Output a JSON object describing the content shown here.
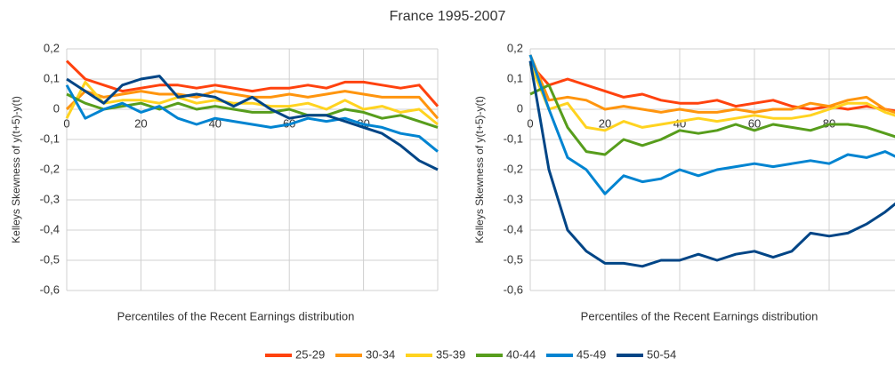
{
  "title": "France 1995-2007",
  "chart_data": [
    {
      "type": "line",
      "ylabel": "Kelleys Skewness of y(t+5)-y(t)",
      "xlabel": "Percentiles of the Recent Earnings distribution",
      "x": [
        0,
        5,
        10,
        15,
        20,
        25,
        30,
        35,
        40,
        45,
        50,
        55,
        60,
        65,
        70,
        75,
        80,
        85,
        90,
        95,
        100
      ],
      "xlim": [
        0,
        100
      ],
      "xticks": [
        0,
        20,
        40,
        60,
        80
      ],
      "ylim": [
        -0.6,
        0.2
      ],
      "yticks": [
        {
          "value": 0.2,
          "label": "0,2"
        },
        {
          "value": 0.1,
          "label": "0,1"
        },
        0,
        {
          "value": -0.1,
          "label": "-0,1"
        },
        {
          "value": -0.2,
          "label": "-0,2"
        },
        {
          "value": -0.3,
          "label": "-0,3"
        },
        {
          "value": -0.4,
          "label": "-0,4"
        },
        {
          "value": -0.5,
          "label": "-0,5"
        },
        {
          "value": -0.6,
          "label": "-0,6"
        }
      ],
      "grid": true,
      "series": [
        {
          "name": "25-29",
          "color": "#ff420e",
          "values": [
            0.16,
            0.1,
            0.08,
            0.06,
            0.07,
            0.08,
            0.08,
            0.07,
            0.08,
            0.07,
            0.06,
            0.07,
            0.07,
            0.08,
            0.07,
            0.09,
            0.09,
            0.08,
            0.07,
            0.08,
            0.01
          ]
        },
        {
          "name": "30-34",
          "color": "#ff950e",
          "values": [
            0.0,
            0.06,
            0.04,
            0.05,
            0.06,
            0.05,
            0.05,
            0.04,
            0.06,
            0.05,
            0.04,
            0.04,
            0.05,
            0.04,
            0.05,
            0.06,
            0.05,
            0.04,
            0.04,
            0.04,
            -0.03
          ]
        },
        {
          "name": "35-39",
          "color": "#ffd320",
          "values": [
            -0.03,
            0.09,
            0.02,
            0.03,
            0.03,
            0.02,
            0.04,
            0.02,
            0.03,
            0.02,
            0.02,
            0.01,
            0.01,
            0.02,
            0.0,
            0.03,
            0.0,
            0.01,
            -0.01,
            0.0,
            -0.05
          ]
        },
        {
          "name": "40-44",
          "color": "#579d1c",
          "values": [
            0.05,
            0.02,
            0.0,
            0.01,
            0.02,
            0.0,
            0.02,
            0.0,
            0.01,
            0.0,
            -0.01,
            -0.01,
            0.0,
            -0.02,
            -0.02,
            0.0,
            -0.01,
            -0.03,
            -0.02,
            -0.04,
            -0.06
          ]
        },
        {
          "name": "45-49",
          "color": "#0084d1",
          "values": [
            0.08,
            -0.03,
            0.0,
            0.02,
            -0.01,
            0.01,
            -0.03,
            -0.05,
            -0.03,
            -0.04,
            -0.05,
            -0.06,
            -0.05,
            -0.03,
            -0.04,
            -0.03,
            -0.05,
            -0.06,
            -0.08,
            -0.09,
            -0.14
          ]
        },
        {
          "name": "50-54",
          "color": "#004586",
          "values": [
            0.1,
            0.06,
            0.02,
            0.08,
            0.1,
            0.11,
            0.04,
            0.05,
            0.04,
            0.01,
            0.04,
            0.0,
            -0.03,
            -0.02,
            -0.02,
            -0.04,
            -0.06,
            -0.08,
            -0.12,
            -0.17,
            -0.2
          ]
        }
      ]
    },
    {
      "type": "line",
      "ylabel": "Kelleys Skewness of y(t+5)-y(t)",
      "xlabel": "Percentiles of the Recent Earnings distribution",
      "x": [
        0,
        5,
        10,
        15,
        20,
        25,
        30,
        35,
        40,
        45,
        50,
        55,
        60,
        65,
        70,
        75,
        80,
        85,
        90,
        95,
        100
      ],
      "xlim": [
        0,
        100
      ],
      "xticks": [
        0,
        20,
        40,
        60,
        80
      ],
      "ylim": [
        -0.6,
        0.2
      ],
      "yticks": [
        {
          "value": 0.2,
          "label": "0,2"
        },
        {
          "value": 0.1,
          "label": "0,1"
        },
        0,
        {
          "value": -0.1,
          "label": "-0,1"
        },
        {
          "value": -0.2,
          "label": "-0,2"
        },
        {
          "value": -0.3,
          "label": "-0,3"
        },
        {
          "value": -0.4,
          "label": "-0,4"
        },
        {
          "value": -0.5,
          "label": "-0,5"
        },
        {
          "value": -0.6,
          "label": "-0,6"
        }
      ],
      "grid": true,
      "series": [
        {
          "name": "25-29",
          "color": "#ff420e",
          "values": [
            0.15,
            0.08,
            0.1,
            0.08,
            0.06,
            0.04,
            0.05,
            0.03,
            0.02,
            0.02,
            0.03,
            0.01,
            0.02,
            0.03,
            0.01,
            0.0,
            0.01,
            0.0,
            0.01,
            0.0,
            -0.01
          ]
        },
        {
          "name": "30-34",
          "color": "#ff950e",
          "values": [
            0.18,
            0.03,
            0.04,
            0.03,
            0.0,
            0.01,
            0.0,
            -0.01,
            0.0,
            -0.01,
            -0.01,
            0.0,
            -0.01,
            0.0,
            0.0,
            0.02,
            0.01,
            0.03,
            0.04,
            0.0,
            -0.02
          ]
        },
        {
          "name": "35-39",
          "color": "#ffd320",
          "values": [
            0.15,
            0.0,
            0.02,
            -0.06,
            -0.07,
            -0.04,
            -0.06,
            -0.05,
            -0.04,
            -0.03,
            -0.04,
            -0.03,
            -0.02,
            -0.03,
            -0.03,
            -0.02,
            0.0,
            0.02,
            0.02,
            -0.01,
            -0.03
          ]
        },
        {
          "name": "40-44",
          "color": "#579d1c",
          "values": [
            0.05,
            0.08,
            -0.06,
            -0.14,
            -0.15,
            -0.1,
            -0.12,
            -0.1,
            -0.07,
            -0.08,
            -0.07,
            -0.05,
            -0.07,
            -0.05,
            -0.06,
            -0.07,
            -0.05,
            -0.05,
            -0.06,
            -0.08,
            -0.1
          ]
        },
        {
          "name": "45-49",
          "color": "#0084d1",
          "values": [
            0.18,
            0.0,
            -0.16,
            -0.2,
            -0.28,
            -0.22,
            -0.24,
            -0.23,
            -0.2,
            -0.22,
            -0.2,
            -0.19,
            -0.18,
            -0.19,
            -0.18,
            -0.17,
            -0.18,
            -0.15,
            -0.16,
            -0.14,
            -0.17
          ]
        },
        {
          "name": "50-54",
          "color": "#004586",
          "values": [
            0.16,
            -0.2,
            -0.4,
            -0.47,
            -0.51,
            -0.51,
            -0.52,
            -0.5,
            -0.5,
            -0.48,
            -0.5,
            -0.48,
            -0.47,
            -0.49,
            -0.47,
            -0.41,
            -0.42,
            -0.41,
            -0.38,
            -0.34,
            -0.29
          ]
        }
      ]
    }
  ]
}
